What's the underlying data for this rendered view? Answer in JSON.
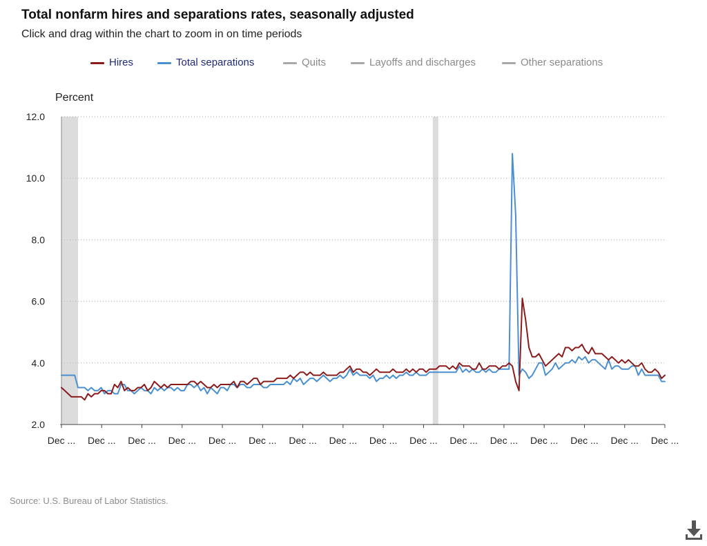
{
  "header": {
    "title": "Total nonfarm hires and separations rates, seasonally adjusted",
    "subtitle": "Click and drag within the chart to zoom in on time periods"
  },
  "legend": [
    {
      "label": "Hires",
      "color": "#8b1a1a",
      "active": true
    },
    {
      "label": "Total separations",
      "color": "#4a8fd0",
      "active": true
    },
    {
      "label": "Quits",
      "color": "#a8a8a8",
      "active": false
    },
    {
      "label": "Layoffs and discharges",
      "color": "#a8a8a8",
      "active": false
    },
    {
      "label": "Other separations",
      "color": "#a8a8a8",
      "active": false
    }
  ],
  "colors": {
    "legend_active_text": "#1f2a7a",
    "legend_inactive_text": "#8a8a8a",
    "recession_band": "#dcdcdc",
    "gridline": "#b0b0b0"
  },
  "footer": {
    "source": "Source: U.S. Bureau of Labor Statistics."
  },
  "icons": {
    "download": "download-icon"
  },
  "chart_data": {
    "type": "line",
    "title": "Total nonfarm hires and separations rates, seasonally adjusted",
    "ylabel": "Percent",
    "xlabel": "",
    "ylim": [
      2.0,
      12.0
    ],
    "yticks": [
      "2.0",
      "4.0",
      "6.0",
      "8.0",
      "10.0",
      "12.0"
    ],
    "xticks": [
      "Dec ...",
      "Dec ...",
      "Dec ...",
      "Dec ...",
      "Dec ...",
      "Dec ...",
      "Dec ...",
      "Dec ...",
      "Dec ...",
      "Dec ...",
      "Dec ...",
      "Dec ...",
      "Dec ...",
      "Dec ...",
      "Dec ...",
      "Dec ..."
    ],
    "grid": "horizontal dotted",
    "legend_position": "top",
    "recession_bands": [
      [
        0,
        5
      ],
      [
        112,
        113
      ]
    ],
    "series": [
      {
        "name": "Hires",
        "color": "#8b1a1a",
        "values": [
          3.2,
          3.1,
          3.0,
          2.9,
          2.9,
          2.9,
          2.9,
          2.8,
          3.0,
          2.9,
          3.0,
          3.0,
          3.1,
          3.1,
          3.0,
          3.0,
          3.3,
          3.2,
          3.4,
          3.1,
          3.2,
          3.1,
          3.1,
          3.2,
          3.2,
          3.3,
          3.1,
          3.2,
          3.4,
          3.3,
          3.2,
          3.3,
          3.2,
          3.3,
          3.3,
          3.3,
          3.3,
          3.3,
          3.3,
          3.4,
          3.4,
          3.3,
          3.4,
          3.3,
          3.2,
          3.2,
          3.3,
          3.2,
          3.3,
          3.3,
          3.3,
          3.3,
          3.4,
          3.2,
          3.4,
          3.4,
          3.3,
          3.4,
          3.5,
          3.5,
          3.3,
          3.4,
          3.4,
          3.4,
          3.4,
          3.5,
          3.5,
          3.5,
          3.5,
          3.6,
          3.5,
          3.6,
          3.7,
          3.7,
          3.6,
          3.7,
          3.6,
          3.6,
          3.6,
          3.7,
          3.6,
          3.6,
          3.6,
          3.6,
          3.7,
          3.7,
          3.8,
          3.9,
          3.7,
          3.8,
          3.8,
          3.7,
          3.7,
          3.6,
          3.7,
          3.8,
          3.7,
          3.7,
          3.7,
          3.7,
          3.8,
          3.7,
          3.7,
          3.7,
          3.8,
          3.7,
          3.8,
          3.7,
          3.8,
          3.8,
          3.7,
          3.8,
          3.8,
          3.8,
          3.9,
          3.9,
          3.9,
          3.8,
          3.9,
          3.8,
          4.0,
          3.9,
          3.9,
          3.9,
          3.8,
          3.8,
          4.0,
          3.8,
          3.8,
          3.9,
          3.9,
          3.9,
          3.8,
          3.9,
          3.9,
          4.0,
          3.9,
          3.4,
          3.1,
          6.1,
          5.4,
          4.5,
          4.2,
          4.2,
          4.3,
          4.1,
          3.9,
          4.0,
          4.1,
          4.2,
          4.3,
          4.2,
          4.5,
          4.5,
          4.4,
          4.5,
          4.5,
          4.6,
          4.4,
          4.3,
          4.5,
          4.3,
          4.3,
          4.3,
          4.2,
          4.1,
          4.2,
          4.1,
          4.0,
          4.1,
          4.0,
          4.1,
          4.0,
          3.9,
          3.9,
          4.0,
          3.8,
          3.7,
          3.7,
          3.8,
          3.7,
          3.5,
          3.6
        ]
      },
      {
        "name": "Total separations",
        "color": "#4a8fd0",
        "values": [
          3.6,
          3.6,
          3.6,
          3.6,
          3.6,
          3.2,
          3.2,
          3.2,
          3.1,
          3.2,
          3.1,
          3.1,
          3.2,
          3.0,
          3.1,
          3.1,
          3.0,
          3.0,
          3.3,
          3.3,
          3.1,
          3.1,
          3.0,
          3.1,
          3.2,
          3.1,
          3.1,
          3.0,
          3.2,
          3.1,
          3.2,
          3.1,
          3.2,
          3.2,
          3.1,
          3.2,
          3.1,
          3.1,
          3.3,
          3.3,
          3.2,
          3.3,
          3.1,
          3.2,
          3.0,
          3.2,
          3.1,
          3.0,
          3.2,
          3.2,
          3.1,
          3.3,
          3.3,
          3.2,
          3.3,
          3.3,
          3.2,
          3.2,
          3.3,
          3.3,
          3.3,
          3.2,
          3.2,
          3.3,
          3.3,
          3.3,
          3.3,
          3.3,
          3.4,
          3.3,
          3.5,
          3.4,
          3.5,
          3.3,
          3.4,
          3.5,
          3.5,
          3.4,
          3.5,
          3.6,
          3.5,
          3.4,
          3.5,
          3.5,
          3.6,
          3.5,
          3.6,
          3.8,
          3.6,
          3.7,
          3.6,
          3.6,
          3.6,
          3.5,
          3.6,
          3.4,
          3.5,
          3.5,
          3.6,
          3.5,
          3.6,
          3.5,
          3.6,
          3.6,
          3.7,
          3.6,
          3.6,
          3.7,
          3.6,
          3.6,
          3.6,
          3.7,
          3.7,
          3.7,
          3.7,
          3.7,
          3.7,
          3.7,
          3.7,
          3.7,
          3.9,
          3.7,
          3.8,
          3.7,
          3.8,
          3.7,
          3.7,
          3.8,
          3.7,
          3.8,
          3.7,
          3.7,
          3.8,
          3.8,
          3.8,
          3.8,
          10.8,
          8.8,
          3.6,
          3.8,
          3.7,
          3.5,
          3.6,
          3.8,
          4.0,
          4.0,
          3.6,
          3.7,
          3.8,
          4.0,
          3.8,
          3.9,
          4.0,
          4.0,
          4.1,
          4.0,
          4.2,
          4.1,
          4.2,
          4.0,
          4.1,
          4.1,
          4.0,
          3.9,
          3.8,
          4.1,
          3.8,
          3.9,
          3.9,
          3.8,
          3.8,
          3.8,
          3.9,
          3.9,
          3.6,
          3.8,
          3.6,
          3.6,
          3.6,
          3.6,
          3.6,
          3.4,
          3.4
        ]
      }
    ]
  }
}
